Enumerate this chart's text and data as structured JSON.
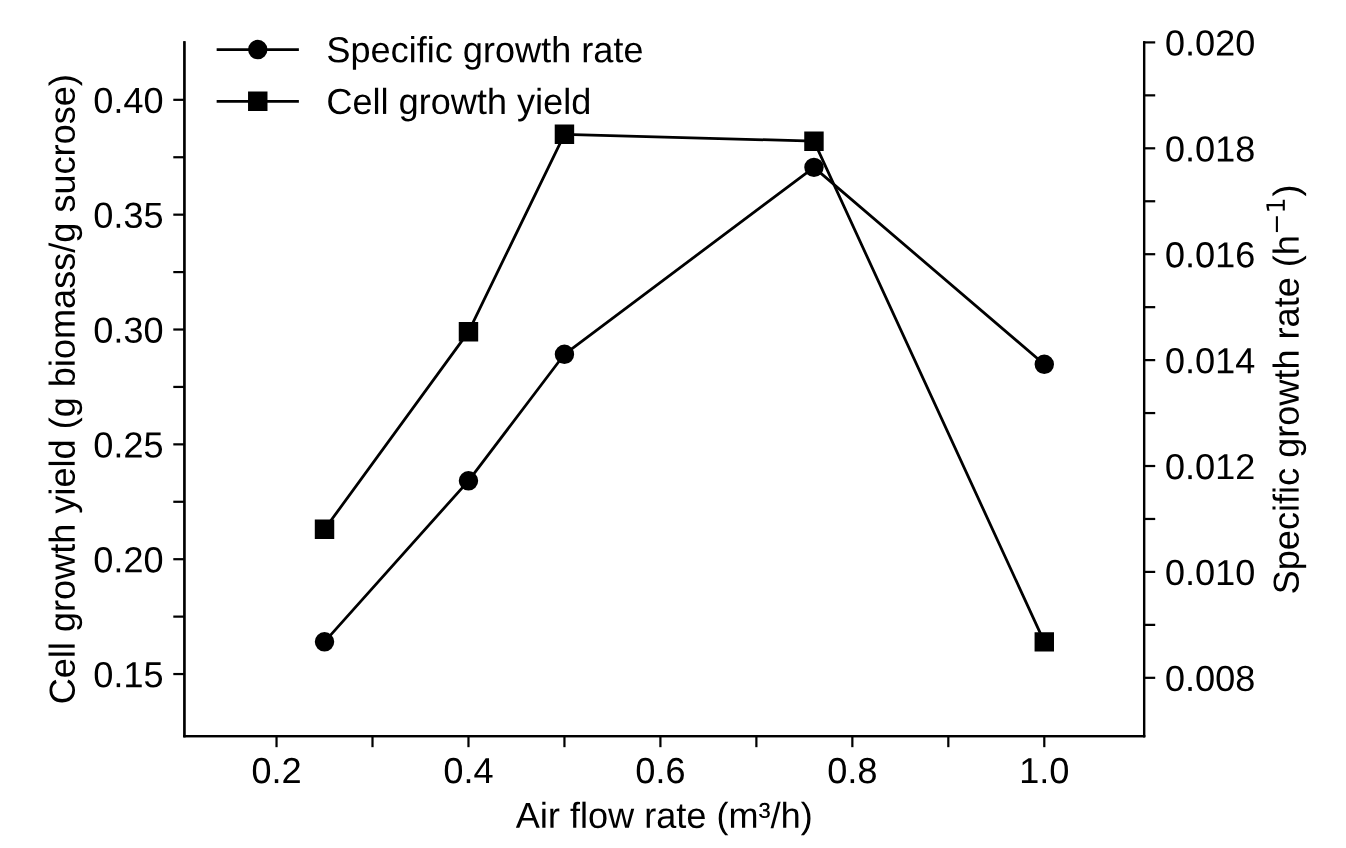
{
  "chart_data": {
    "type": "line",
    "xlabel": "Air flow rate (m³/h)",
    "ylabel": "Cell growth yield (g biomass/g sucrose)",
    "y2label": "Specific growth rate (h$^{−1}$)",
    "x": [
      0.25,
      0.4,
      0.5,
      0.76,
      1.0
    ],
    "series": [
      {
        "name": "Specific growth rate",
        "color": "#000000",
        "marker": "circle",
        "axis": "y2",
        "values": [
          0.00868,
          0.01172,
          0.01411,
          0.01764,
          0.01392
        ]
      },
      {
        "name": "Cell growth yield",
        "color": "#000000",
        "marker": "square",
        "values": [
          0.213,
          0.299,
          0.385,
          0.382,
          0.164
        ]
      }
    ],
    "xlim": [
      0.104,
      1.104
    ],
    "xticks": [
      {
        "value": 0.2,
        "label": "0.2"
      },
      {
        "value": 0.3,
        "label": null
      },
      {
        "value": 0.4,
        "label": "0.4"
      },
      {
        "value": 0.5,
        "label": null
      },
      {
        "value": 0.6,
        "label": "0.6"
      },
      {
        "value": 0.7,
        "label": null
      },
      {
        "value": 0.8,
        "label": "0.8"
      },
      {
        "value": 0.9,
        "label": null
      },
      {
        "value": 1.0,
        "label": "1.0"
      }
    ],
    "ylim": [
      0.123,
      0.425
    ],
    "yticks": [
      {
        "value": 0.15,
        "label": "0.15"
      },
      {
        "value": 0.175,
        "label": null
      },
      {
        "value": 0.2,
        "label": "0.20"
      },
      {
        "value": 0.225,
        "label": null
      },
      {
        "value": 0.25,
        "label": "0.25"
      },
      {
        "value": 0.275,
        "label": null
      },
      {
        "value": 0.3,
        "label": "0.30"
      },
      {
        "value": 0.325,
        "label": null
      },
      {
        "value": 0.35,
        "label": "0.35"
      },
      {
        "value": 0.375,
        "label": null
      },
      {
        "value": 0.4,
        "label": "0.40"
      }
    ],
    "y2lim": [
      0.0069,
      0.02
    ],
    "y2ticks": [
      {
        "value": 0.008,
        "label": "0.008"
      },
      {
        "value": 0.009,
        "label": null
      },
      {
        "value": 0.01,
        "label": "0.010"
      },
      {
        "value": 0.011,
        "label": null
      },
      {
        "value": 0.012,
        "label": "0.012"
      },
      {
        "value": 0.013,
        "label": null
      },
      {
        "value": 0.014,
        "label": "0.014"
      },
      {
        "value": 0.015,
        "label": null
      },
      {
        "value": 0.016,
        "label": "0.016"
      },
      {
        "value": 0.017,
        "label": null
      },
      {
        "value": 0.018,
        "label": "0.018"
      },
      {
        "value": 0.019,
        "label": null
      },
      {
        "value": 0.02,
        "label": "0.020"
      }
    ],
    "legend": "top left",
    "grid": false,
    "line_style": "solid"
  }
}
